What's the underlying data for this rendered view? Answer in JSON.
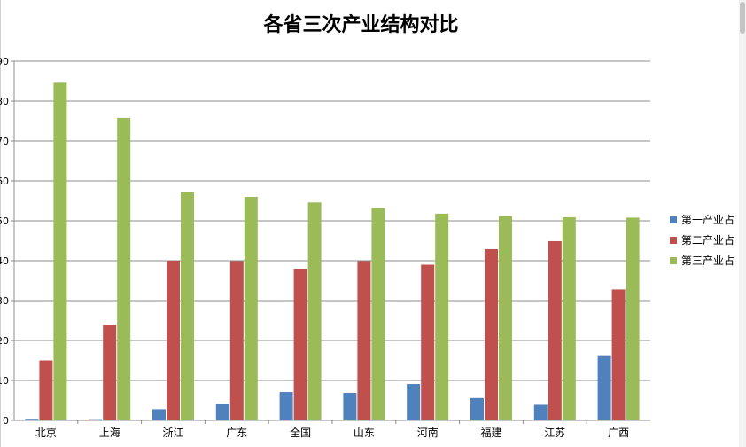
{
  "chart_data": {
    "type": "bar",
    "title": "各省三次产业结构对比",
    "categories": [
      "北京",
      "上海",
      "浙江",
      "广东",
      "全国",
      "山东",
      "河南",
      "福建",
      "江苏",
      "广西"
    ],
    "series": [
      {
        "name": "第一产业占",
        "color": "#4f81bd",
        "values": [
          0.4,
          0.3,
          2.8,
          4.1,
          7.1,
          6.9,
          9.1,
          5.6,
          3.9,
          16.3
        ]
      },
      {
        "name": "第二产业占",
        "color": "#c0504d",
        "values": [
          15.0,
          23.9,
          40.0,
          39.9,
          38.0,
          39.9,
          39.0,
          42.9,
          44.9,
          32.8
        ]
      },
      {
        "name": "第三产业占",
        "color": "#9bbb59",
        "values": [
          84.6,
          75.8,
          57.2,
          56.0,
          54.6,
          53.2,
          51.8,
          51.2,
          50.9,
          50.8
        ]
      }
    ],
    "ylim": [
      0,
      90
    ],
    "ytick_step": 10,
    "grid": true,
    "legend_position": "right"
  }
}
